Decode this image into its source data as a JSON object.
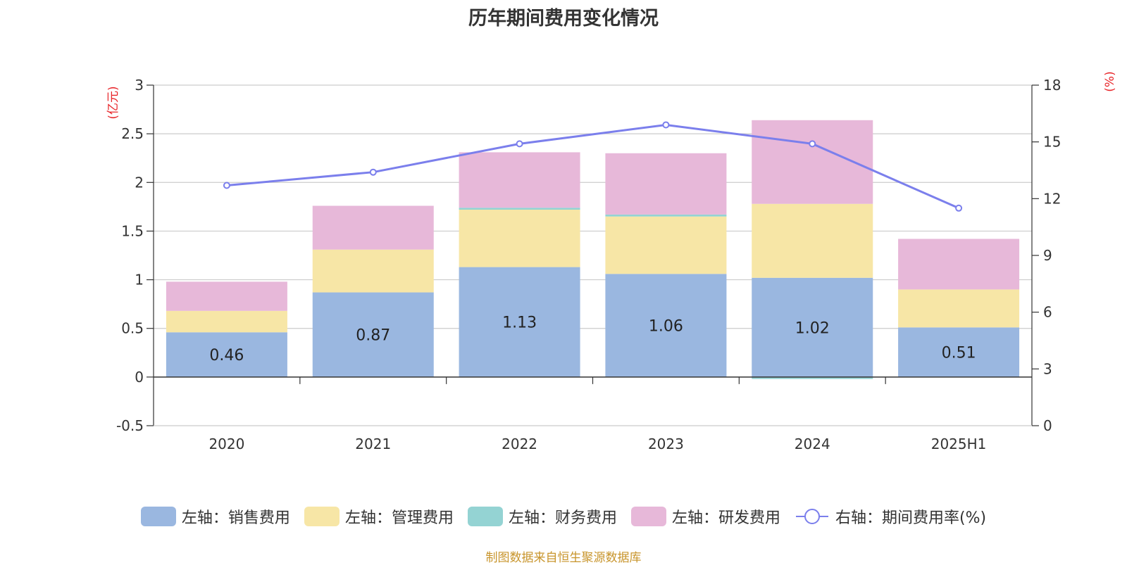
{
  "chart_data": {
    "type": "bar",
    "title": "历年期间费用变化情况",
    "categories": [
      "2020",
      "2021",
      "2022",
      "2023",
      "2024",
      "2025H1"
    ],
    "left_axis": {
      "unit": "(亿元)",
      "ylim": [
        -0.5,
        3
      ],
      "ticks": [
        "3",
        "2.5",
        "2",
        "1.5",
        "1",
        "0.5",
        "0",
        "-0.5"
      ]
    },
    "right_axis": {
      "unit": "(%)",
      "ylim": [
        0,
        18
      ],
      "ticks": [
        "18",
        "15",
        "12",
        "9",
        "6",
        "3",
        "0"
      ]
    },
    "series": [
      {
        "name": "左轴：销售费用",
        "axis": "left",
        "type": "bar",
        "color": "#9ab7e0",
        "values": [
          0.46,
          0.87,
          1.13,
          1.06,
          1.02,
          0.51
        ],
        "labels": [
          "0.46",
          "0.87",
          "1.13",
          "1.06",
          "1.02",
          "0.51"
        ]
      },
      {
        "name": "左轴：管理费用",
        "axis": "left",
        "type": "bar",
        "color": "#f7e6a6",
        "values": [
          0.22,
          0.44,
          0.59,
          0.59,
          0.76,
          0.39
        ]
      },
      {
        "name": "左轴：财务费用",
        "axis": "left",
        "type": "bar",
        "color": "#94d3d3",
        "values": [
          0.0,
          0.0,
          0.02,
          0.02,
          -0.02,
          0.0
        ]
      },
      {
        "name": "左轴：研发费用",
        "axis": "left",
        "type": "bar",
        "color": "#e7b8d9",
        "values": [
          0.3,
          0.45,
          0.57,
          0.63,
          0.86,
          0.52
        ]
      },
      {
        "name": "右轴：期间费用率(%)",
        "axis": "right",
        "type": "line",
        "color": "#7b7fec",
        "values": [
          12.7,
          13.4,
          14.9,
          15.9,
          14.9,
          11.5
        ]
      }
    ],
    "grid": true,
    "legend_position": "bottom"
  },
  "source": "制图数据来自恒生聚源数据库"
}
